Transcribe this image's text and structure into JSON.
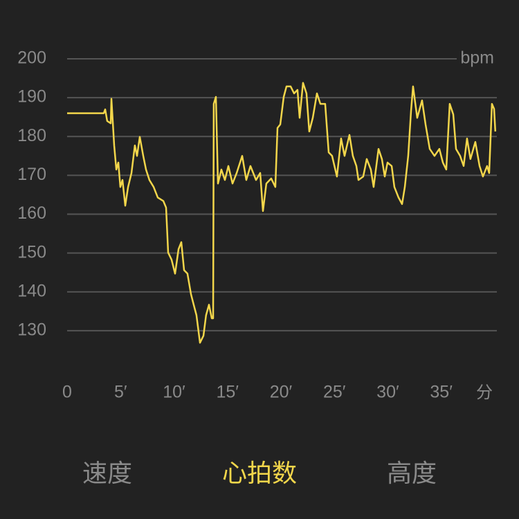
{
  "chart_data": {
    "type": "line",
    "y_unit": "bpm",
    "x_unit": "分",
    "xlim": [
      0,
      40.2
    ],
    "ylim": [
      125,
      200
    ],
    "xticks": [
      0,
      {
        "value": 5,
        "label": "5′"
      },
      {
        "value": 10,
        "label": "10′"
      },
      {
        "value": 15,
        "label": "15′"
      },
      {
        "value": 20,
        "label": "20′"
      },
      {
        "value": 25,
        "label": "25′"
      },
      {
        "value": 30,
        "label": "30′"
      },
      {
        "value": 35,
        "label": "35′"
      }
    ],
    "yticks": [
      130,
      140,
      150,
      160,
      170,
      180,
      190,
      200
    ],
    "grid": true,
    "x": [
      0,
      3.43,
      3.56,
      3.75,
      4.08,
      4.14,
      4.4,
      4.6,
      4.79,
      4.98,
      5.18,
      5.44,
      5.7,
      6.02,
      6.34,
      6.54,
      6.8,
      7.12,
      7.38,
      7.7,
      8.09,
      8.48,
      9.0,
      9.26,
      9.45,
      9.77,
      10.1,
      10.42,
      10.68,
      10.94,
      11.26,
      11.59,
      11.84,
      12.1,
      12.43,
      12.75,
      13.0,
      13.27,
      13.53,
      13.66,
      13.72,
      13.92,
      14.11,
      14.43,
      14.76,
      15.08,
      15.47,
      15.86,
      16.38,
      16.76,
      17.15,
      17.67,
      18.06,
      18.32,
      18.64,
      19.09,
      19.48,
      19.68,
      19.94,
      20.26,
      20.52,
      20.91,
      21.23,
      21.55,
      21.75,
      22.07,
      22.39,
      22.65,
      22.98,
      23.37,
      23.69,
      24.14,
      24.47,
      24.79,
      25.24,
      25.63,
      25.95,
      26.41,
      26.73,
      27.06,
      27.25,
      27.7,
      28.03,
      28.41,
      28.67,
      29.13,
      29.45,
      29.71,
      29.97,
      30.36,
      30.61,
      31.0,
      31.33,
      31.59,
      31.91,
      32.17,
      32.36,
      32.75,
      33.2,
      33.53,
      33.92,
      34.37,
      34.82,
      35.15,
      35.47,
      35.79,
      36.12,
      36.38,
      36.76,
      37.09,
      37.41,
      37.73,
      38.19,
      38.58,
      38.9,
      39.29,
      39.48,
      39.74,
      39.94,
      40.06
    ],
    "series": [
      {
        "color": "#f2d64b",
        "values": [
          186,
          186,
          187,
          184,
          183.4,
          189.7,
          177.7,
          171.5,
          173.3,
          167,
          168.8,
          162.2,
          167,
          170.6,
          177.7,
          175,
          179.9,
          175,
          171.5,
          168.8,
          167,
          164.3,
          163.4,
          161.7,
          150.1,
          148.3,
          144.7,
          151,
          152.8,
          145.6,
          144.7,
          139.4,
          136.7,
          134,
          126.9,
          128.7,
          134,
          136.7,
          133.2,
          133.2,
          188.4,
          190.2,
          167.9,
          171.5,
          168.8,
          172.4,
          167.9,
          170.6,
          175,
          168.8,
          172.4,
          168.8,
          170.6,
          160.8,
          167.9,
          169.2,
          167,
          182.2,
          183.1,
          190.2,
          192.9,
          192.9,
          191.1,
          192,
          184.8,
          193.8,
          191.1,
          181.3,
          184.8,
          191.1,
          188.4,
          188.4,
          175.9,
          175,
          169.7,
          179.5,
          175,
          180.4,
          175,
          172.4,
          168.8,
          169.7,
          174.2,
          171.5,
          167,
          176.8,
          174.2,
          169.7,
          173.3,
          172.4,
          167,
          164.3,
          162.6,
          167,
          175,
          186.6,
          192.9,
          184.8,
          189.3,
          183.1,
          176.8,
          175,
          176.8,
          173.3,
          171.5,
          188.4,
          185.7,
          176.8,
          175,
          172.4,
          179.5,
          174.2,
          178.6,
          172.4,
          169.7,
          172.4,
          170.6,
          188.4,
          187.1,
          181.3
        ]
      }
    ]
  },
  "tabs": [
    {
      "label": "速度"
    },
    {
      "label": "心拍数"
    },
    {
      "label": "高度"
    }
  ],
  "active_tab": 1
}
